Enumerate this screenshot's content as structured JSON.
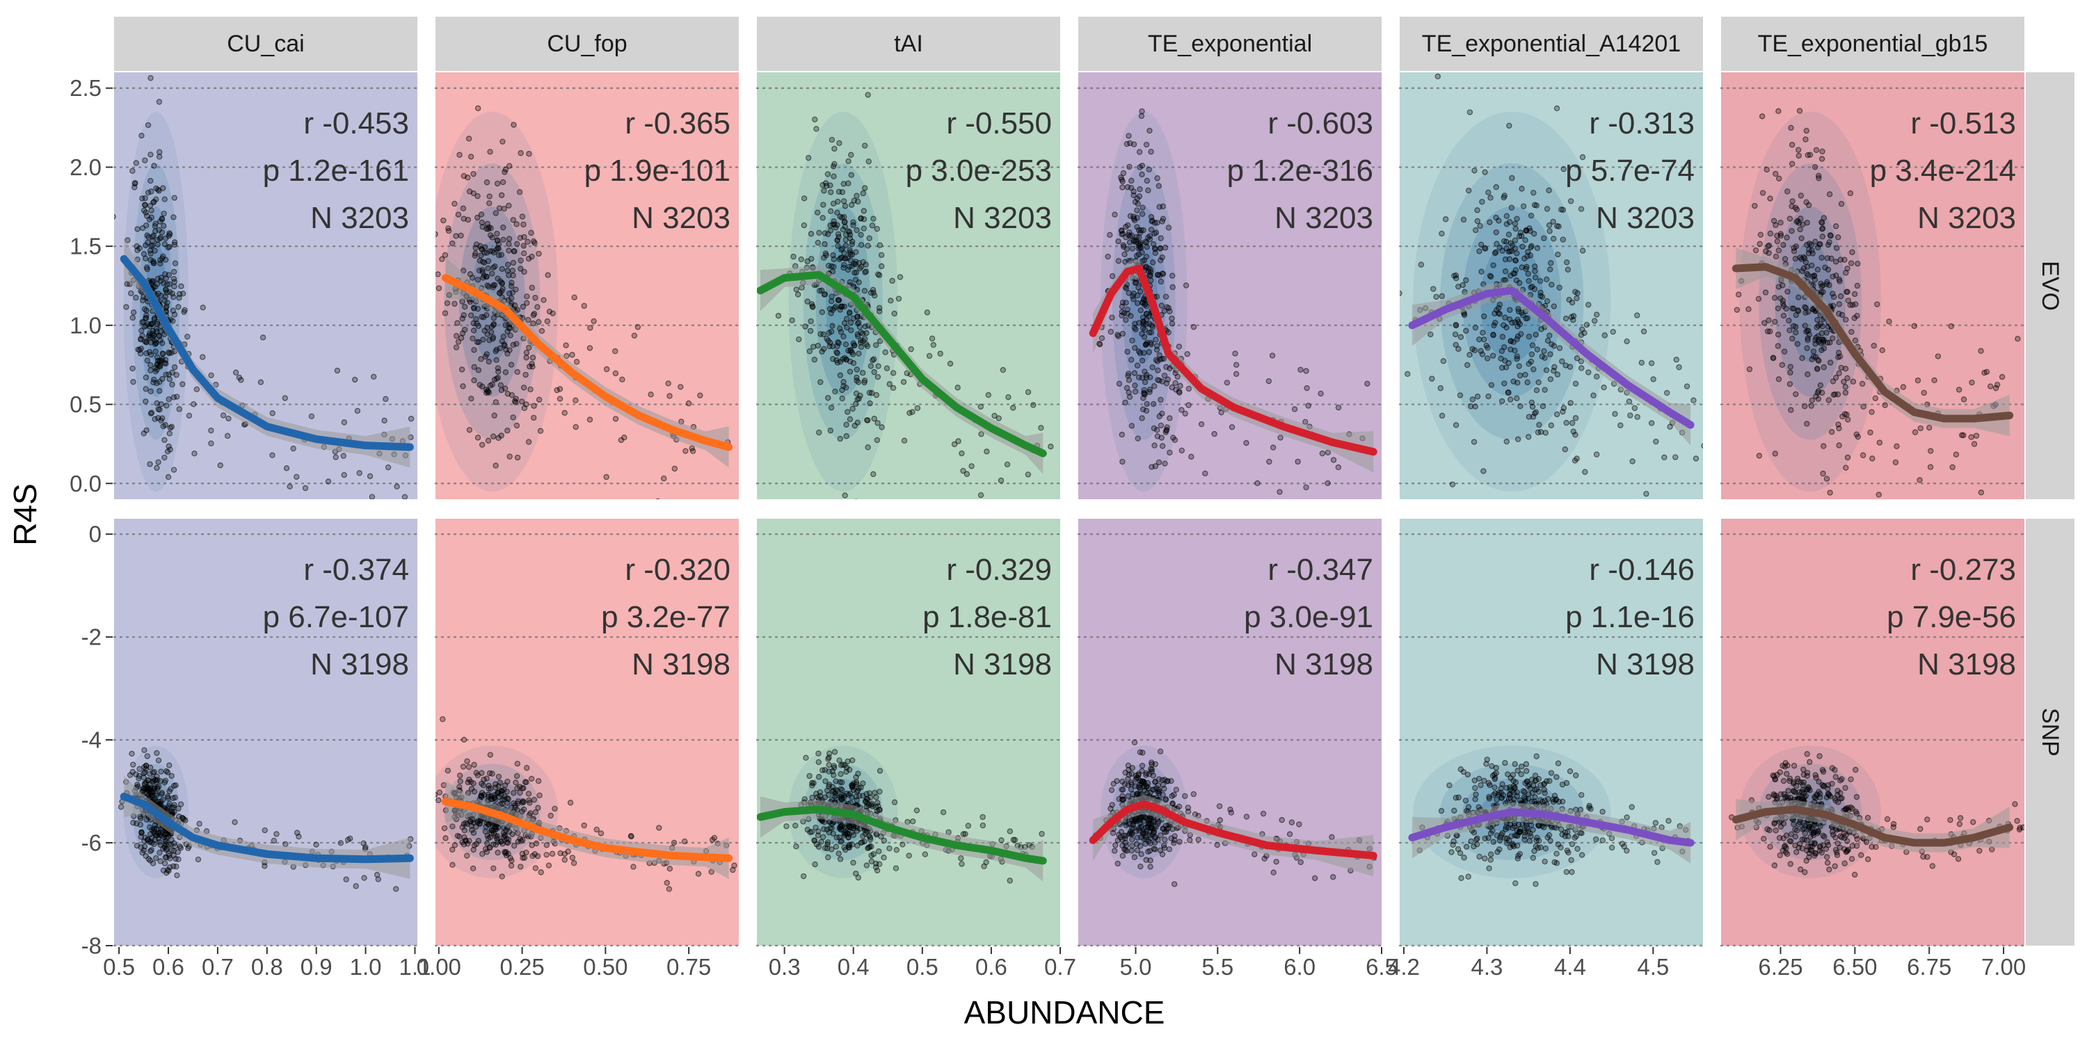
{
  "figure": {
    "xlabel": "ABUNDANCE",
    "ylabel": "R4S",
    "row_strips": [
      "EVO",
      "SNP"
    ]
  },
  "style": {
    "strip_color": "#d3d3d3",
    "grid_color": "#6e6e6e",
    "point_color": "#000000",
    "density_color": "#2f6fa0",
    "ribbon_color": "#9a9a9a"
  },
  "chart_data": {
    "type": "scatter",
    "facet_rows": [
      "EVO",
      "SNP"
    ],
    "row_ylim": [
      [
        -0.1,
        2.6
      ],
      [
        -8,
        0.3
      ]
    ],
    "row_yticks": [
      [
        0.0,
        0.5,
        1.0,
        1.5,
        2.0,
        2.5
      ],
      [
        -8,
        -6,
        -4,
        -2,
        0
      ]
    ],
    "row_yticklabels": [
      [
        "0.0",
        "0.5",
        "1.0",
        "1.5",
        "2.0",
        "2.5"
      ],
      [
        "-8",
        "-6",
        "-4",
        "-2",
        "0"
      ]
    ],
    "grid": "horizontal dotted",
    "panels": [
      {
        "name": "CU_cai",
        "bg": "#c0c2dd",
        "line_color": "#2166ac",
        "xlim": [
          0.49,
          1.105
        ],
        "xticks": [
          0.5,
          0.6,
          0.7,
          0.8,
          0.9,
          1.0,
          1.1
        ],
        "xticklabels": [
          "0.5",
          "0.6",
          "0.7",
          "0.8",
          "0.9",
          "1.0",
          "1.1"
        ],
        "cluster": {
          "cx": 0.575,
          "sx": 0.025,
          "tail_max": 1.1
        },
        "evo": {
          "stats": [
            "r -0.453",
            "p 1.2e-161",
            "N 3203"
          ],
          "fit_x": [
            0.51,
            0.55,
            0.6,
            0.65,
            0.7,
            0.8,
            0.9,
            1.0,
            1.09
          ],
          "fit_y": [
            1.42,
            1.27,
            0.98,
            0.72,
            0.54,
            0.36,
            0.28,
            0.24,
            0.23
          ],
          "cy": 1.15,
          "sy": 0.42
        },
        "snp": {
          "stats": [
            "r -0.374",
            "p 6.7e-107",
            "N 3198"
          ],
          "fit_x": [
            0.51,
            0.55,
            0.6,
            0.65,
            0.7,
            0.8,
            0.9,
            1.0,
            1.09
          ],
          "fit_y": [
            -5.1,
            -5.25,
            -5.6,
            -5.9,
            -6.05,
            -6.22,
            -6.3,
            -6.32,
            -6.3
          ],
          "cy": -5.4,
          "sy": 0.45
        }
      },
      {
        "name": "CU_fop",
        "bg": "#f6b4b5",
        "line_color": "#ff6e1a",
        "xlim": [
          -0.01,
          0.9
        ],
        "xticks": [
          0.0,
          0.25,
          0.5,
          0.75
        ],
        "xticklabels": [
          "0.00",
          "0.25",
          "0.50",
          "0.75"
        ],
        "cluster": {
          "cx": 0.16,
          "sx": 0.075,
          "tail_max": 0.88
        },
        "evo": {
          "stats": [
            "r -0.365",
            "p 1.9e-101",
            "N 3203"
          ],
          "fit_x": [
            0.02,
            0.1,
            0.2,
            0.3,
            0.4,
            0.5,
            0.6,
            0.7,
            0.8,
            0.87
          ],
          "fit_y": [
            1.3,
            1.22,
            1.1,
            0.88,
            0.7,
            0.55,
            0.43,
            0.34,
            0.27,
            0.23
          ],
          "cy": 1.15,
          "sy": 0.42
        },
        "snp": {
          "stats": [
            "r -0.320",
            "p 3.2e-77",
            "N 3198"
          ],
          "fit_x": [
            0.02,
            0.1,
            0.2,
            0.3,
            0.4,
            0.5,
            0.6,
            0.7,
            0.8,
            0.87
          ],
          "fit_y": [
            -5.2,
            -5.3,
            -5.5,
            -5.75,
            -5.95,
            -6.1,
            -6.18,
            -6.25,
            -6.28,
            -6.3
          ],
          "cy": -5.4,
          "sy": 0.45
        }
      },
      {
        "name": "tAI",
        "bg": "#b8d8c3",
        "line_color": "#238b2f",
        "xlim": [
          0.26,
          0.7
        ],
        "xticks": [
          0.3,
          0.4,
          0.5,
          0.6,
          0.7
        ],
        "xticklabels": [
          "0.3",
          "0.4",
          "0.5",
          "0.6",
          "0.7"
        ],
        "cluster": {
          "cx": 0.385,
          "sx": 0.03,
          "tail_max": 0.68
        },
        "evo": {
          "stats": [
            "r -0.550",
            "p 3.0e-253",
            "N 3203"
          ],
          "fit_x": [
            0.265,
            0.3,
            0.35,
            0.4,
            0.45,
            0.5,
            0.55,
            0.6,
            0.65,
            0.675
          ],
          "fit_y": [
            1.22,
            1.3,
            1.32,
            1.18,
            0.92,
            0.66,
            0.48,
            0.35,
            0.24,
            0.19
          ],
          "cy": 1.15,
          "sy": 0.42
        },
        "snp": {
          "stats": [
            "r -0.329",
            "p 1.8e-81",
            "N 3198"
          ],
          "fit_x": [
            0.265,
            0.3,
            0.35,
            0.4,
            0.45,
            0.5,
            0.55,
            0.6,
            0.65,
            0.675
          ],
          "fit_y": [
            -5.5,
            -5.4,
            -5.35,
            -5.45,
            -5.7,
            -5.9,
            -6.05,
            -6.15,
            -6.3,
            -6.35
          ],
          "cy": -5.4,
          "sy": 0.45
        }
      },
      {
        "name": "TE_exponential",
        "bg": "#c8b1d1",
        "line_color": "#d4202c",
        "xlim": [
          4.65,
          6.5
        ],
        "xticks": [
          5.0,
          5.5,
          6.0,
          6.5
        ],
        "xticklabels": [
          "5.0",
          "5.5",
          "6.0",
          "6.5"
        ],
        "cluster": {
          "cx": 5.05,
          "sx": 0.1,
          "tail_max": 6.45
        },
        "evo": {
          "stats": [
            "r -0.603",
            "p 1.2e-316",
            "N 3203"
          ],
          "fit_x": [
            4.74,
            4.85,
            4.95,
            5.02,
            5.1,
            5.2,
            5.4,
            5.6,
            5.9,
            6.2,
            6.45
          ],
          "fit_y": [
            0.95,
            1.2,
            1.34,
            1.36,
            1.15,
            0.82,
            0.6,
            0.48,
            0.36,
            0.26,
            0.2
          ],
          "cy": 1.15,
          "sy": 0.42
        },
        "snp": {
          "stats": [
            "r -0.347",
            "p 3.0e-91",
            "N 3198"
          ],
          "fit_x": [
            4.74,
            4.85,
            4.95,
            5.05,
            5.15,
            5.3,
            5.5,
            5.8,
            6.1,
            6.45
          ],
          "fit_y": [
            -5.95,
            -5.6,
            -5.35,
            -5.25,
            -5.35,
            -5.6,
            -5.8,
            -6.05,
            -6.15,
            -6.25
          ],
          "cy": -5.4,
          "sy": 0.45
        }
      },
      {
        "name": "TE_exponential_A14201",
        "bg": "#b8d6d6",
        "line_color": "#7b4fc4",
        "xlim": [
          4.195,
          4.56
        ],
        "xticks": [
          4.2,
          4.3,
          4.4,
          4.5
        ],
        "xticklabels": [
          "4.2",
          "4.3",
          "4.4",
          "4.5"
        ],
        "cluster": {
          "cx": 4.33,
          "sx": 0.045,
          "tail_max": 4.55
        },
        "evo": {
          "stats": [
            "r -0.313",
            "p 5.7e-74",
            "N 3203"
          ],
          "fit_x": [
            4.21,
            4.25,
            4.3,
            4.33,
            4.37,
            4.42,
            4.47,
            4.52,
            4.545
          ],
          "fit_y": [
            1.0,
            1.1,
            1.2,
            1.22,
            1.05,
            0.82,
            0.62,
            0.45,
            0.37
          ],
          "cy": 1.15,
          "sy": 0.42
        },
        "snp": {
          "stats": [
            "r -0.146",
            "p 1.1e-16",
            "N 3198"
          ],
          "fit_x": [
            4.21,
            4.25,
            4.3,
            4.33,
            4.37,
            4.42,
            4.47,
            4.52,
            4.545
          ],
          "fit_y": [
            -5.9,
            -5.7,
            -5.5,
            -5.4,
            -5.45,
            -5.6,
            -5.75,
            -5.95,
            -6.0
          ],
          "cy": -5.4,
          "sy": 0.45
        }
      },
      {
        "name": "TE_exponential_gb15",
        "bg": "#eba8ae",
        "line_color": "#6e4b3e",
        "xlim": [
          6.05,
          7.07
        ],
        "xticks": [
          6.25,
          6.5,
          6.75,
          7.0
        ],
        "xticklabels": [
          "6.25",
          "6.50",
          "6.75",
          "7.00"
        ],
        "cluster": {
          "cx": 6.35,
          "sx": 0.09,
          "tail_max": 7.05
        },
        "evo": {
          "stats": [
            "r -0.513",
            "p 3.4e-214",
            "N 3203"
          ],
          "fit_x": [
            6.1,
            6.2,
            6.3,
            6.4,
            6.5,
            6.6,
            6.7,
            6.8,
            6.9,
            7.02
          ],
          "fit_y": [
            1.36,
            1.37,
            1.3,
            1.1,
            0.82,
            0.58,
            0.45,
            0.41,
            0.41,
            0.43
          ],
          "cy": 1.15,
          "sy": 0.42
        },
        "snp": {
          "stats": [
            "r -0.273",
            "p 7.9e-56",
            "N 3198"
          ],
          "fit_x": [
            6.1,
            6.2,
            6.3,
            6.4,
            6.5,
            6.6,
            6.7,
            6.8,
            6.9,
            7.02
          ],
          "fit_y": [
            -5.55,
            -5.4,
            -5.35,
            -5.45,
            -5.65,
            -5.9,
            -6.0,
            -6.0,
            -5.9,
            -5.7
          ],
          "cy": -5.4,
          "sy": 0.45
        }
      }
    ]
  }
}
